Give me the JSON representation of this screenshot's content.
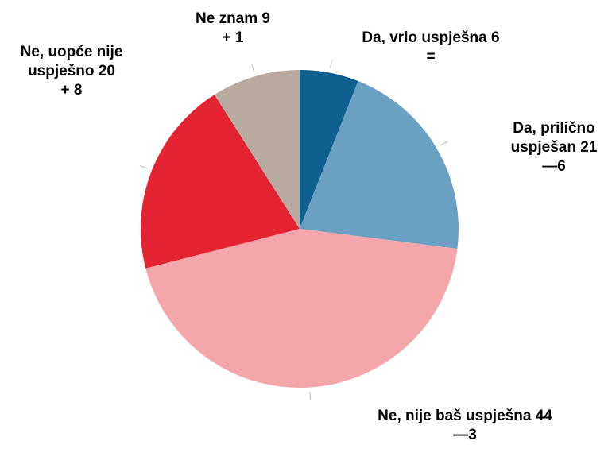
{
  "chart_data": {
    "type": "pie",
    "categories": [
      "Da, vrlo uspješna",
      "Da, prilično uspješan",
      "Ne, nije baš uspješna",
      "Ne, uopće nije uspješno",
      "Ne znam"
    ],
    "values": [
      6,
      21,
      44,
      20,
      9
    ],
    "changes": [
      "=",
      "—6",
      "—3",
      "+ 8",
      "+ 1"
    ],
    "colors": [
      "#0f5f8f",
      "#6aa1c2",
      "#f4a6ab",
      "#e32232",
      "#b8a9a1"
    ]
  }
}
